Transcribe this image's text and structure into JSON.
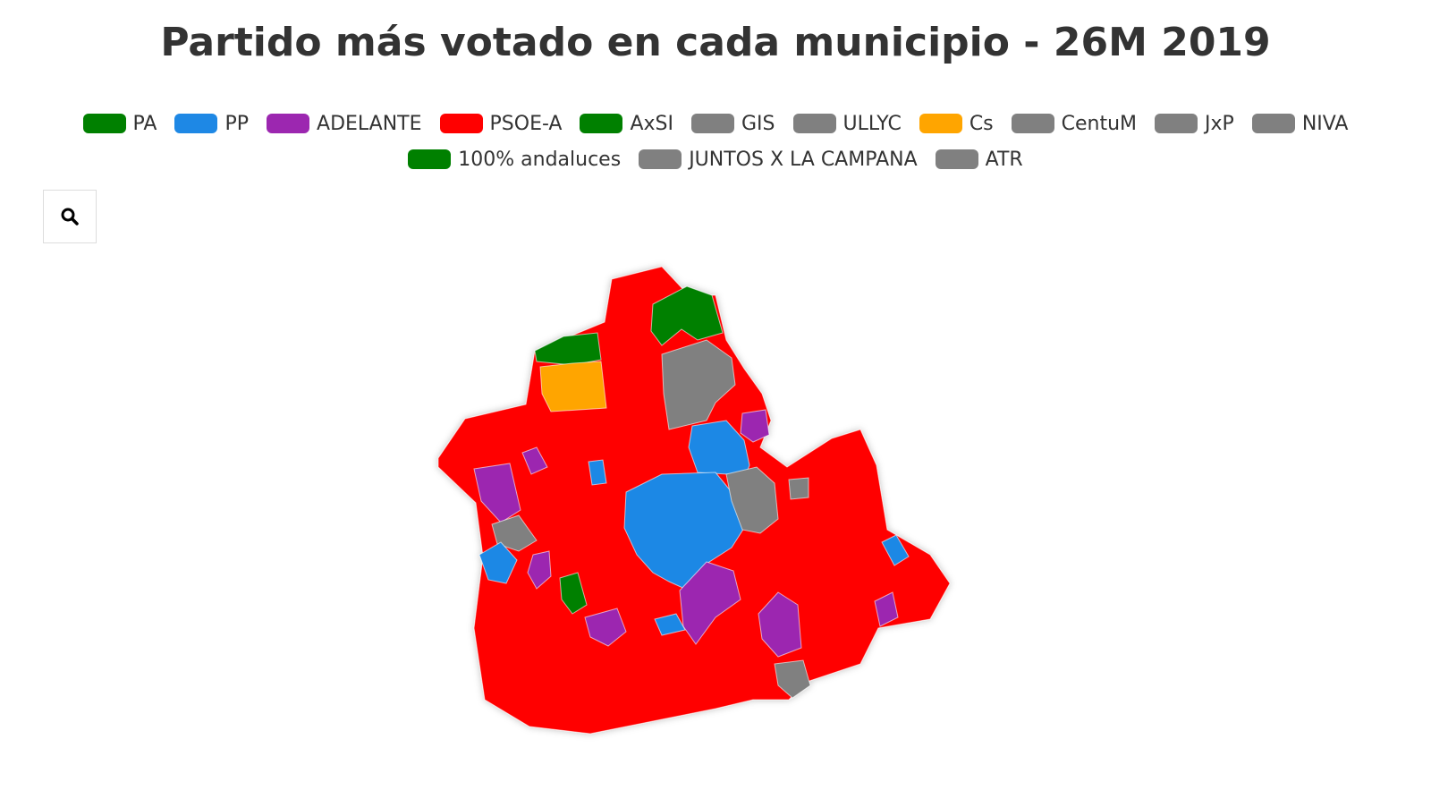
{
  "header": {
    "title": "Partido más votado en cada municipio - 26M 2019"
  },
  "legend": {
    "items": [
      {
        "name": "PA",
        "color": "#008000"
      },
      {
        "name": "PP",
        "color": "#1e88e5"
      },
      {
        "name": "ADELANTE",
        "color": "#9c27b0"
      },
      {
        "name": "PSOE-A",
        "color": "#ff0000"
      },
      {
        "name": "AxSI",
        "color": "#008000"
      },
      {
        "name": "GIS",
        "color": "#808080"
      },
      {
        "name": "ULLYC",
        "color": "#808080"
      },
      {
        "name": "Cs",
        "color": "#ffa500"
      },
      {
        "name": "CentuM",
        "color": "#808080"
      },
      {
        "name": "JxP",
        "color": "#808080"
      },
      {
        "name": "NIVA",
        "color": "#808080"
      },
      {
        "name": "100% andaluces",
        "color": "#008000"
      },
      {
        "name": "JUNTOS X LA CAMPANA",
        "color": "#808080"
      },
      {
        "name": "ATR",
        "color": "#808080"
      }
    ]
  }
}
